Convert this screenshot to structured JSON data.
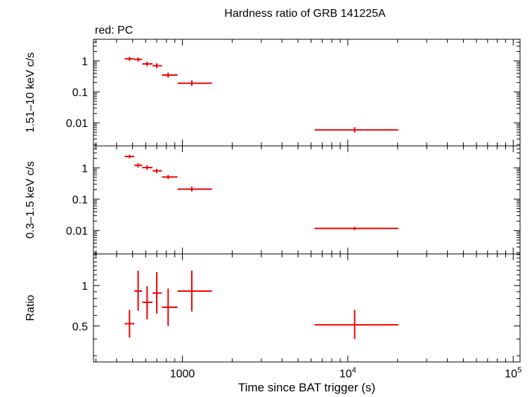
{
  "title": "Hardness ratio of GRB 141225A",
  "subtitle": "red: PC",
  "colors": {
    "series": "#ee0000",
    "axes": "#000000",
    "background": "#ffffff"
  },
  "chart_data": [
    {
      "type": "scatter",
      "panel": "hard-band",
      "ylabel": "1.51–10 keV c/s",
      "xscale": "log",
      "yscale": "log",
      "xlim": [
        290,
        110000
      ],
      "ylim": [
        0.0018,
        5
      ],
      "yticks": [
        0.01,
        0.1,
        1
      ],
      "ytick_labels": [
        "0.01",
        "0.1",
        "1"
      ],
      "points": [
        {
          "x": 479,
          "xerr": [
            448,
            512
          ],
          "y": 1.17,
          "yerr": [
            1.0,
            1.35
          ]
        },
        {
          "x": 540,
          "xerr": [
            512,
            572
          ],
          "y": 1.12,
          "yerr": [
            0.95,
            1.3
          ]
        },
        {
          "x": 612,
          "xerr": [
            572,
            660
          ],
          "y": 0.8,
          "yerr": [
            0.68,
            0.94
          ]
        },
        {
          "x": 700,
          "xerr": [
            660,
            752
          ],
          "y": 0.7,
          "yerr": [
            0.58,
            0.84
          ]
        },
        {
          "x": 820,
          "xerr": [
            752,
            935
          ],
          "y": 0.35,
          "yerr": [
            0.29,
            0.42
          ]
        },
        {
          "x": 1140,
          "xerr": [
            935,
            1510
          ],
          "y": 0.19,
          "yerr": [
            0.155,
            0.235
          ]
        },
        {
          "x": 11000,
          "xerr": [
            6300,
            20200
          ],
          "y": 0.0059,
          "yerr": [
            0.0048,
            0.0072
          ]
        }
      ]
    },
    {
      "type": "scatter",
      "panel": "soft-band",
      "ylabel": "0.3–1.5 keV c/s",
      "xscale": "log",
      "yscale": "log",
      "xlim": [
        290,
        110000
      ],
      "ylim": [
        0.0018,
        5
      ],
      "yticks": [
        0.01,
        0.1,
        1
      ],
      "ytick_labels": [
        "0.01",
        "0.1",
        "1"
      ],
      "points": [
        {
          "x": 479,
          "xerr": [
            448,
            512
          ],
          "y": 2.3,
          "yerr": [
            2.0,
            2.6
          ]
        },
        {
          "x": 540,
          "xerr": [
            512,
            572
          ],
          "y": 1.2,
          "yerr": [
            1.02,
            1.4
          ]
        },
        {
          "x": 612,
          "xerr": [
            572,
            660
          ],
          "y": 1.02,
          "yerr": [
            0.87,
            1.18
          ]
        },
        {
          "x": 700,
          "xerr": [
            660,
            752
          ],
          "y": 0.8,
          "yerr": [
            0.68,
            0.93
          ]
        },
        {
          "x": 820,
          "xerr": [
            752,
            935
          ],
          "y": 0.51,
          "yerr": [
            0.44,
            0.59
          ]
        },
        {
          "x": 1140,
          "xerr": [
            935,
            1510
          ],
          "y": 0.21,
          "yerr": [
            0.175,
            0.25
          ]
        },
        {
          "x": 11000,
          "xerr": [
            6300,
            20200
          ],
          "y": 0.0117,
          "yerr": [
            0.0103,
            0.0132
          ]
        }
      ]
    },
    {
      "type": "scatter",
      "panel": "ratio",
      "xlabel": "Time since BAT trigger (s)",
      "ylabel": "Ratio",
      "xscale": "log",
      "yscale": "log",
      "xlim": [
        290,
        110000
      ],
      "ylim": [
        0.27,
        1.72
      ],
      "yticks": [
        0.5,
        1
      ],
      "ytick_labels": [
        "0.5",
        "1"
      ],
      "xticks": [
        1000,
        10000,
        100000
      ],
      "xtick_labels": [
        {
          "base": "1000",
          "exp": ""
        },
        {
          "base": "10",
          "exp": "4"
        },
        {
          "base": "10",
          "exp": "5"
        }
      ],
      "points": [
        {
          "x": 479,
          "xerr": [
            448,
            512
          ],
          "y": 0.52,
          "yerr": [
            0.41,
            0.66
          ]
        },
        {
          "x": 540,
          "xerr": [
            512,
            572
          ],
          "y": 0.91,
          "yerr": [
            0.65,
            1.29
          ]
        },
        {
          "x": 612,
          "xerr": [
            572,
            660
          ],
          "y": 0.75,
          "yerr": [
            0.56,
            0.99
          ]
        },
        {
          "x": 700,
          "xerr": [
            660,
            752
          ],
          "y": 0.88,
          "yerr": [
            0.62,
            1.26
          ]
        },
        {
          "x": 820,
          "xerr": [
            752,
            935
          ],
          "y": 0.69,
          "yerr": [
            0.5,
            0.95
          ]
        },
        {
          "x": 1140,
          "xerr": [
            935,
            1510
          ],
          "y": 0.91,
          "yerr": [
            0.64,
            1.29
          ]
        },
        {
          "x": 11000,
          "xerr": [
            6300,
            20200
          ],
          "y": 0.51,
          "yerr": [
            0.4,
            0.66
          ]
        }
      ]
    }
  ]
}
